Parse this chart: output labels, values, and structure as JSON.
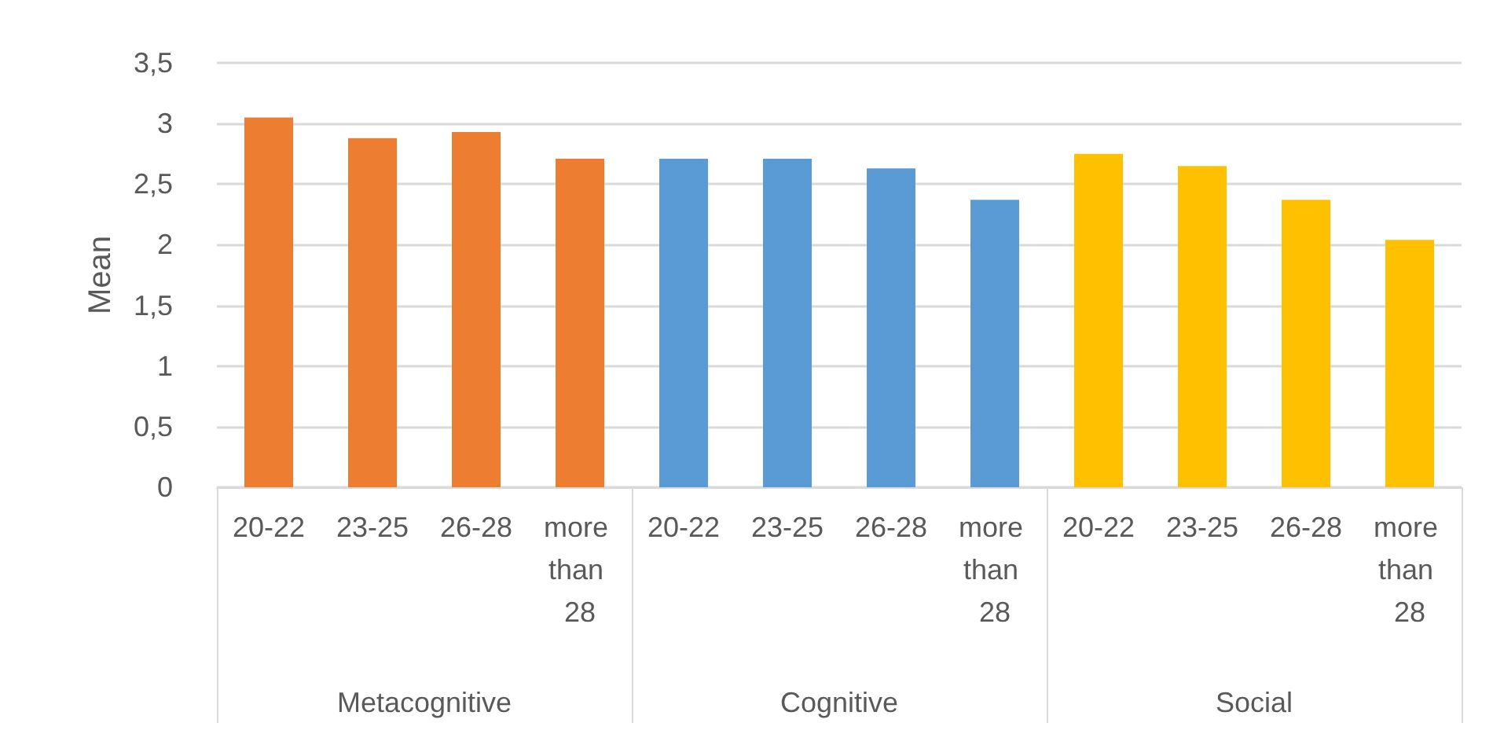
{
  "chart_data": {
    "type": "bar",
    "ylabel": "Mean",
    "categories": [
      "20-22",
      "23-25",
      "26-28",
      "more than 28",
      "20-22",
      "23-25",
      "26-28",
      "more than 28",
      "20-22",
      "23-25",
      "26-28",
      "more than 28"
    ],
    "values": [
      3.05,
      2.88,
      2.93,
      2.71,
      2.71,
      2.71,
      2.63,
      2.37,
      2.75,
      2.65,
      2.37,
      2.04
    ],
    "colors": [
      "#ed7d31",
      "#ed7d31",
      "#ed7d31",
      "#ed7d31",
      "#5b9bd5",
      "#5b9bd5",
      "#5b9bd5",
      "#5b9bd5",
      "#ffc000",
      "#ffc000",
      "#ffc000",
      "#ffc000"
    ],
    "annotations": [
      "Metacognitive",
      "Cognitive",
      "Social"
    ],
    "ylim": [
      0,
      3.5
    ],
    "yticks": [
      0,
      {
        "value": 0.5,
        "label": "0,5"
      },
      1,
      {
        "value": 1.5,
        "label": "1,5"
      },
      2,
      {
        "value": 2.5,
        "label": "2,5"
      },
      3,
      {
        "value": 3.5,
        "label": "3,5"
      }
    ],
    "grid": "y"
  }
}
